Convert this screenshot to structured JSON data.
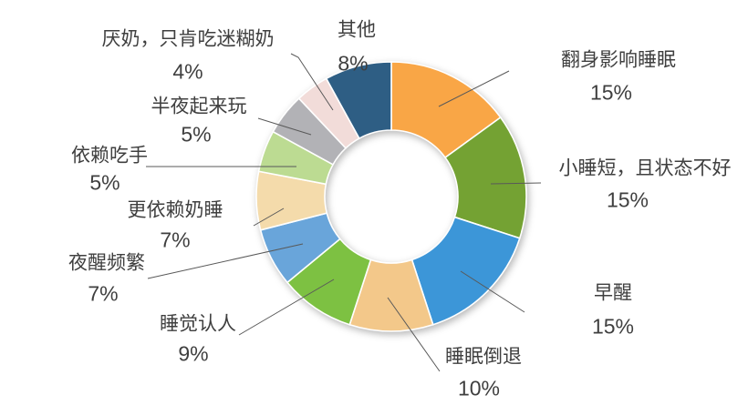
{
  "chart_data": {
    "type": "pie",
    "subtype": "donut",
    "title": "",
    "legend_position": "none",
    "direction": "clockwise",
    "start_angle_deg": 0,
    "background": "#FFFFFF",
    "text_color": "#3F3F3F",
    "leader_line_color": "#595959",
    "slice_border_color": "#FFFFFF",
    "slices": [
      {
        "label": "翻身影响睡眠",
        "pct_label": "15%",
        "value": 15,
        "color": "#F9A646"
      },
      {
        "label": "小睡短，且状态不好",
        "pct_label": "15%",
        "value": 15,
        "color": "#74A233"
      },
      {
        "label": "早醒",
        "pct_label": "15%",
        "value": 15,
        "color": "#3C96D8"
      },
      {
        "label": "睡眠倒退",
        "pct_label": "10%",
        "value": 10,
        "color": "#F3C88A"
      },
      {
        "label": "睡觉认人",
        "pct_label": "9%",
        "value": 9,
        "color": "#7DC142"
      },
      {
        "label": "夜醒频繁",
        "pct_label": "7%",
        "value": 7,
        "color": "#69A5DA"
      },
      {
        "label": "更依赖奶睡",
        "pct_label": "7%",
        "value": 7,
        "color": "#F4DBAB"
      },
      {
        "label": "依赖吃手",
        "pct_label": "5%",
        "value": 5,
        "color": "#BCDB92"
      },
      {
        "label": "半夜起来玩",
        "pct_label": "5%",
        "value": 5,
        "color": "#B2B2B6"
      },
      {
        "label": "厌奶，只肯吃迷糊奶",
        "pct_label": "4%",
        "value": 4,
        "color": "#F2DCD9"
      },
      {
        "label": "其他",
        "pct_label": "8%",
        "value": 8,
        "color": "#2E5E84"
      }
    ]
  }
}
